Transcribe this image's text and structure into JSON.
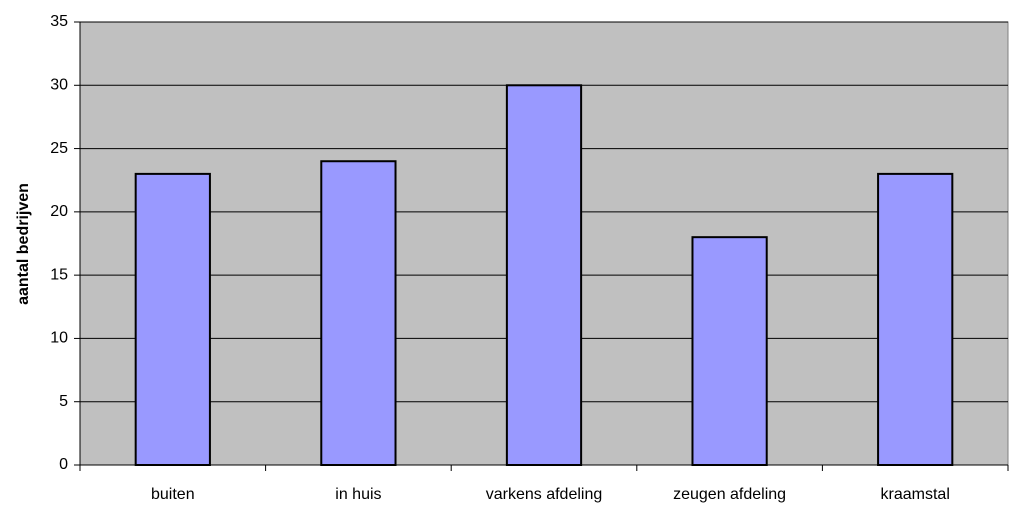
{
  "chart_data": {
    "type": "bar",
    "y_label": "aantal bedrijven",
    "categories": [
      "buiten",
      "in huis",
      "varkens afdeling",
      "zeugen afdeling",
      "kraamstal"
    ],
    "values": [
      23,
      24,
      30,
      18,
      23
    ],
    "color": "#9999ff",
    "ylim": [
      0,
      35
    ],
    "yticks": [
      0,
      5,
      10,
      15,
      20,
      25,
      30,
      35
    ],
    "grid": true
  }
}
